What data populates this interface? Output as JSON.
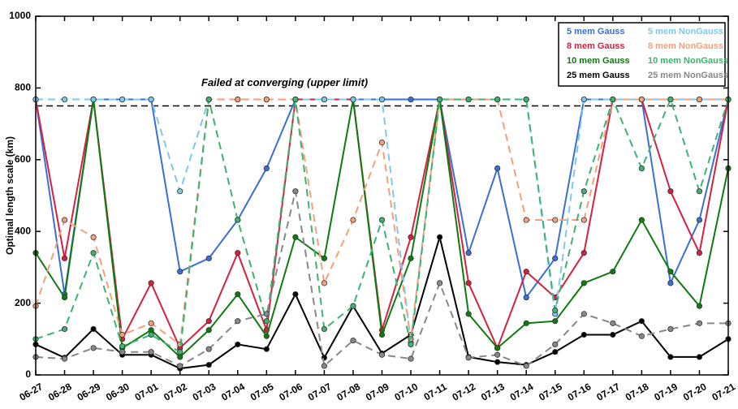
{
  "chart_data": {
    "type": "line",
    "y_label": "Optimal length scale (km)",
    "categories": [
      "06-27",
      "06-28",
      "06-29",
      "06-30",
      "07-01",
      "07-02",
      "07-03",
      "07-04",
      "07-05",
      "07-06",
      "07-07",
      "07-08",
      "07-09",
      "07-10",
      "07-11",
      "07-12",
      "07-13",
      "07-14",
      "07-15",
      "07-16",
      "07-17",
      "07-18",
      "07-19",
      "07-20",
      "07-21"
    ],
    "ylim": [
      0,
      1000
    ],
    "yticks": [
      0,
      200,
      400,
      600,
      800,
      1000
    ],
    "reference_line": {
      "value": 750,
      "label": "Failed at converging (upper limit)",
      "color": "#000000"
    },
    "legend": "upper right",
    "series": [
      {
        "name": "5 mem Gauss",
        "color": "#3a6fd8",
        "linestyle": "solid",
        "values": [
          768,
          225,
          768,
          768,
          768,
          288,
          325,
          432,
          576,
          768,
          768,
          768,
          768,
          768,
          768,
          340,
          576,
          216,
          325,
          768,
          768,
          768,
          256,
          432,
          768
        ]
      },
      {
        "name": "8 mem Gauss",
        "color": "#d6203f",
        "linestyle": "solid",
        "values": [
          768,
          325,
          768,
          100,
          256,
          75,
          150,
          340,
          125,
          768,
          768,
          768,
          125,
          384,
          768,
          256,
          75,
          288,
          216,
          340,
          768,
          768,
          512,
          340,
          768
        ]
      },
      {
        "name": "10 mem Gauss",
        "color": "#0f7a10",
        "linestyle": "solid",
        "values": [
          340,
          216,
          768,
          75,
          125,
          50,
          125,
          225,
          108,
          384,
          325,
          768,
          112,
          325,
          768,
          170,
          75,
          144,
          150,
          256,
          288,
          432,
          288,
          192,
          576
        ]
      },
      {
        "name": "25 mem Gauss",
        "color": "#000000",
        "linestyle": "solid",
        "values": [
          85,
          48,
          128,
          56,
          56,
          18,
          28,
          85,
          72,
          225,
          48,
          192,
          60,
          112,
          384,
          50,
          36,
          28,
          64,
          112,
          112,
          150,
          50,
          50,
          100
        ]
      },
      {
        "name": "5 mem NonGauss",
        "color": "#7ec8ee",
        "linestyle": "dashed",
        "values": [
          768,
          768,
          768,
          768,
          768,
          512,
          768,
          768,
          768,
          768,
          768,
          768,
          768,
          90,
          768,
          768,
          768,
          768,
          170,
          768,
          768,
          768,
          768,
          768,
          768
        ]
      },
      {
        "name": "8 mem NonGauss",
        "color": "#f4a07a",
        "linestyle": "dashed",
        "values": [
          192,
          432,
          384,
          112,
          144,
          85,
          768,
          768,
          768,
          768,
          256,
          432,
          648,
          100,
          768,
          768,
          768,
          432,
          432,
          432,
          768,
          768,
          768,
          768,
          768
        ]
      },
      {
        "name": "10 mem NonGauss",
        "color": "#3cb371",
        "linestyle": "dashed",
        "values": [
          100,
          128,
          340,
          80,
          112,
          64,
          768,
          432,
          150,
          768,
          128,
          192,
          432,
          85,
          768,
          768,
          768,
          768,
          180,
          512,
          768,
          576,
          768,
          512,
          768
        ]
      },
      {
        "name": "25 mem NonGauss",
        "color": "#888888",
        "linestyle": "dashed",
        "values": [
          50,
          45,
          75,
          64,
          64,
          25,
          72,
          150,
          170,
          512,
          25,
          96,
          56,
          45,
          256,
          48,
          56,
          25,
          85,
          170,
          144,
          108,
          128,
          144,
          144
        ]
      }
    ]
  }
}
